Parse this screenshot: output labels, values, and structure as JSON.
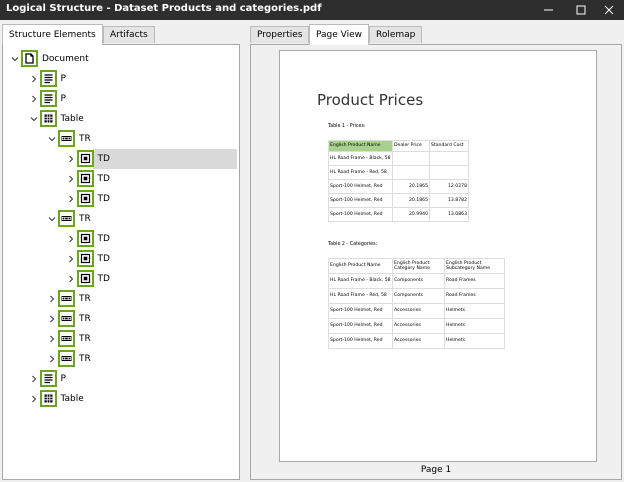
{
  "window": {
    "title": "Logical Structure - Dataset Products and categories.pdf"
  },
  "left_panel": {
    "tabs": [
      "Structure Elements",
      "Artifacts"
    ],
    "active_tab": 0,
    "tree": [
      {
        "label": "Document",
        "expanded": true,
        "children": [
          {
            "label": "P",
            "expanded": false
          },
          {
            "label": "P",
            "expanded": false
          },
          {
            "label": "Table",
            "expanded": true,
            "children": [
              {
                "label": "TR",
                "expanded": true,
                "children": [
                  {
                    "label": "TD",
                    "expanded": false,
                    "selected": true
                  },
                  {
                    "label": "TD",
                    "expanded": false
                  },
                  {
                    "label": "TD",
                    "expanded": false
                  }
                ]
              },
              {
                "label": "TR",
                "expanded": true,
                "children": [
                  {
                    "label": "TD",
                    "expanded": false
                  },
                  {
                    "label": "TD",
                    "expanded": false
                  },
                  {
                    "label": "TD",
                    "expanded": false
                  }
                ]
              },
              {
                "label": "TR",
                "expanded": false
              },
              {
                "label": "TR",
                "expanded": false
              },
              {
                "label": "TR",
                "expanded": false
              },
              {
                "label": "TR",
                "expanded": false
              }
            ]
          },
          {
            "label": "P",
            "expanded": false
          },
          {
            "label": "Table",
            "expanded": false
          }
        ]
      }
    ]
  },
  "right_panel": {
    "tabs": [
      "Properties",
      "Page View",
      "Rolemap"
    ],
    "active_tab": 1,
    "page": {
      "heading": "Product Prices",
      "table1": {
        "caption": "Table 1 - Prices:",
        "header": [
          "English Product Name",
          "Dealer Price",
          "Standard Cost"
        ],
        "rows": [
          [
            "HL Road Frame - Black, 58",
            null,
            null
          ],
          [
            "HL Road Frame - Red, 58",
            null,
            null
          ],
          [
            "Sport-100 Helmet, Red",
            "20.1865",
            "12.0278"
          ],
          [
            "Sport-100 Helmet, Red",
            "20.1865",
            "13.8782"
          ],
          [
            "Sport-100 Helmet, Red",
            "20.9940",
            "13.0863"
          ]
        ]
      },
      "table2": {
        "caption": "Table 2 - Categories:",
        "header": [
          "English Product Name",
          "English Product Category Name",
          "English Product Subcategory Name"
        ],
        "rows": [
          [
            "HL Road Frame - Black, 58",
            "Components",
            "Road Frames"
          ],
          [
            "HL Road Frame - Red, 58",
            "Components",
            "Road Frames"
          ],
          [
            "Sport-100 Helmet, Red",
            "Accessories",
            "Helmets"
          ],
          [
            "Sport-100 Helmet, Red",
            "Accessories",
            "Helmets"
          ],
          [
            "Sport-100 Helmet, Red",
            "Accessories",
            "Helmets"
          ]
        ]
      }
    },
    "page_label": "Page 1"
  }
}
